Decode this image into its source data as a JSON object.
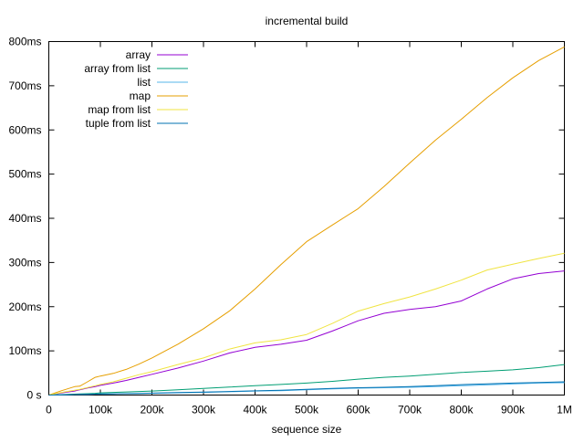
{
  "chart_data": {
    "type": "line",
    "title": "incremental build",
    "xlabel": "sequence size",
    "ylabel": "",
    "xlim": [
      0,
      1000000
    ],
    "ylim": [
      0,
      800
    ],
    "x_ticks": [
      0,
      100000,
      200000,
      300000,
      400000,
      500000,
      600000,
      700000,
      800000,
      900000,
      1000000
    ],
    "x_tick_labels": [
      "0",
      "100k",
      "200k",
      "300k",
      "400k",
      "500k",
      "600k",
      "700k",
      "800k",
      "900k",
      "1M"
    ],
    "y_ticks": [
      0,
      100,
      200,
      300,
      400,
      500,
      600,
      700,
      800
    ],
    "y_tick_labels": [
      "0 s",
      "100ms",
      "200ms",
      "300ms",
      "400ms",
      "500ms",
      "600ms",
      "700ms",
      "800ms"
    ],
    "legend_position": "top-left",
    "grid": false,
    "x": [
      0,
      25000,
      50000,
      60000,
      75000,
      90000,
      100000,
      125000,
      150000,
      175000,
      200000,
      250000,
      300000,
      350000,
      400000,
      450000,
      500000,
      550000,
      600000,
      650000,
      700000,
      750000,
      800000,
      850000,
      900000,
      950000,
      1000000
    ],
    "series": [
      {
        "name": "array",
        "color": "#9400d3",
        "values": [
          0,
          5,
          9,
          12,
          16,
          19,
          22,
          27,
          33,
          40,
          47,
          61,
          77,
          95,
          108,
          115,
          124,
          145,
          168,
          185,
          194,
          200,
          213,
          240,
          263,
          275,
          281
        ]
      },
      {
        "name": "array from list",
        "color": "#009e73",
        "values": [
          0,
          1,
          2,
          2.5,
          3,
          4,
          5,
          6,
          7,
          8,
          9,
          12,
          15,
          18,
          21,
          24,
          27,
          31,
          36,
          40,
          43,
          47,
          51,
          54,
          57,
          62,
          69
        ]
      },
      {
        "name": "list",
        "color": "#56b4e9",
        "values": [
          0,
          0.5,
          1,
          1.3,
          1.6,
          2,
          2.2,
          2.7,
          3,
          3.5,
          4,
          5,
          6,
          7.5,
          9,
          10,
          12,
          14,
          15.5,
          16.5,
          17.5,
          19,
          21,
          23,
          25,
          27,
          28
        ]
      },
      {
        "name": "map",
        "color": "#e69f00",
        "values": [
          0,
          10,
          19,
          20,
          30,
          40,
          43,
          49,
          58,
          70,
          84,
          115,
          150,
          190,
          240,
          295,
          347,
          385,
          422,
          472,
          525,
          577,
          624,
          673,
          718,
          757,
          788
        ]
      },
      {
        "name": "map from list",
        "color": "#f0e442",
        "values": [
          0,
          6,
          11,
          13,
          17,
          21,
          24,
          30,
          38,
          46,
          53,
          69,
          84,
          104,
          118,
          125,
          137,
          162,
          190,
          207,
          222,
          240,
          260,
          283,
          296,
          309,
          321
        ]
      },
      {
        "name": "tuple from list",
        "color": "#0072b2",
        "values": [
          0,
          0.6,
          1,
          1.3,
          1.7,
          2,
          2.4,
          2.9,
          3.3,
          3.8,
          4.3,
          5.5,
          6.7,
          8,
          9.5,
          11,
          13,
          15,
          16.5,
          17.5,
          19,
          21,
          23.5,
          25.5,
          27,
          28.5,
          30
        ]
      }
    ]
  }
}
